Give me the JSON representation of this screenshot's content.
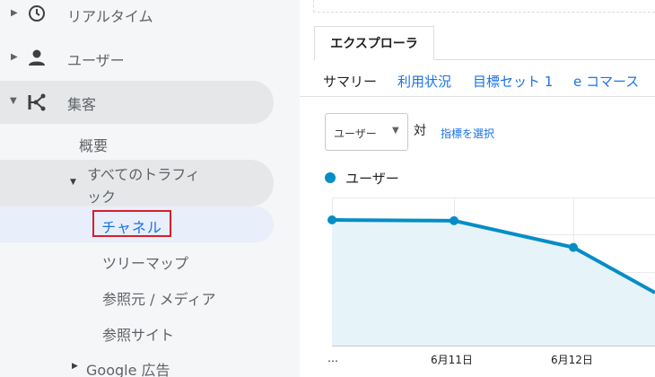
{
  "sidebar": {
    "items": [
      {
        "label": "リアルタイム",
        "icon": "clock-icon"
      },
      {
        "label": "ユーザー",
        "icon": "person-icon"
      },
      {
        "label": "集客",
        "icon": "acquisition-icon"
      }
    ],
    "acquisition": {
      "overview": "概要",
      "all_traffic": {
        "line1": "すべてのトラフィ",
        "line2": "ック"
      },
      "channels": "チャネル",
      "treemap": "ツリーマップ",
      "source_medium": "参照元 / メディア",
      "referrals": "参照サイト",
      "google_ads": "Google 広告"
    }
  },
  "main": {
    "tab": "エクスプローラ",
    "subtabs": [
      "サマリー",
      "利用状況",
      "目標セット 1",
      "e コマース"
    ],
    "metric_select": {
      "value": "ユーザー"
    },
    "vs_label": "対",
    "select_metric_link": "指標を選択",
    "legend": "ユーザー"
  },
  "colors": {
    "accent": "#1a73e8",
    "series": "#058dc7",
    "highlight_border": "#d51f2d"
  },
  "chart_data": {
    "type": "area",
    "x": [
      "…",
      "6月11日",
      "6月12日",
      "…"
    ],
    "series": [
      {
        "name": "ユーザー",
        "values": [
          1.0,
          0.995,
          0.83,
          0.55
        ]
      }
    ],
    "tick_labels": [
      "…",
      "6月11日",
      "6月12日"
    ],
    "grid": true,
    "legend_position": "top-left"
  }
}
